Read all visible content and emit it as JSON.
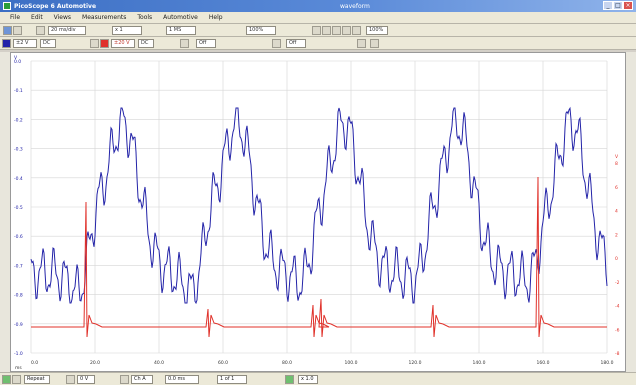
{
  "window": {
    "title": "PicoScope 6 Automotive",
    "document": "waveform",
    "minimize": "_",
    "maximize": "□",
    "close": "×"
  },
  "menu": [
    "File",
    "Edit",
    "Views",
    "Measurements",
    "Tools",
    "Automotive",
    "Help"
  ],
  "toolbar": {
    "timebase": "20 ms/div",
    "zoom": "x 1",
    "samples": "1 MS",
    "zoom_percent": "100%"
  },
  "channels": {
    "a_range": "±2 V",
    "a_coupling": "DC",
    "b_range": "±20 V",
    "b_coupling": "DC",
    "c_range": "Off",
    "d_range": "Off"
  },
  "plot": {
    "left_axis_unit": "V",
    "left_ticks": [
      "0.0",
      "-0.1",
      "-0.2",
      "-0.3",
      "-0.4",
      "-0.5",
      "-0.6",
      "-0.7",
      "-0.8",
      "-0.9",
      "-1.0"
    ],
    "right_axis_unit": "V",
    "right_ticks": [
      "8",
      "6",
      "4",
      "2",
      "0",
      "-2",
      "-4",
      "-6",
      "-8"
    ],
    "x_ticks": [
      "0.0",
      "20.0",
      "40.0",
      "60.0",
      "80.0",
      "100.0",
      "120.0",
      "140.0",
      "160.0",
      "180.0"
    ],
    "x_unit": "ms",
    "trace_a_color": "#2323a8",
    "trace_b_color": "#e0312a"
  },
  "status": {
    "trigger_mode": "Repeat",
    "trigger_level": "0 V",
    "trigger_channel": "Ch A",
    "pretrigger": "0.0 ms",
    "capture": "1 of 1",
    "zoom_info": "x 1.0"
  }
}
